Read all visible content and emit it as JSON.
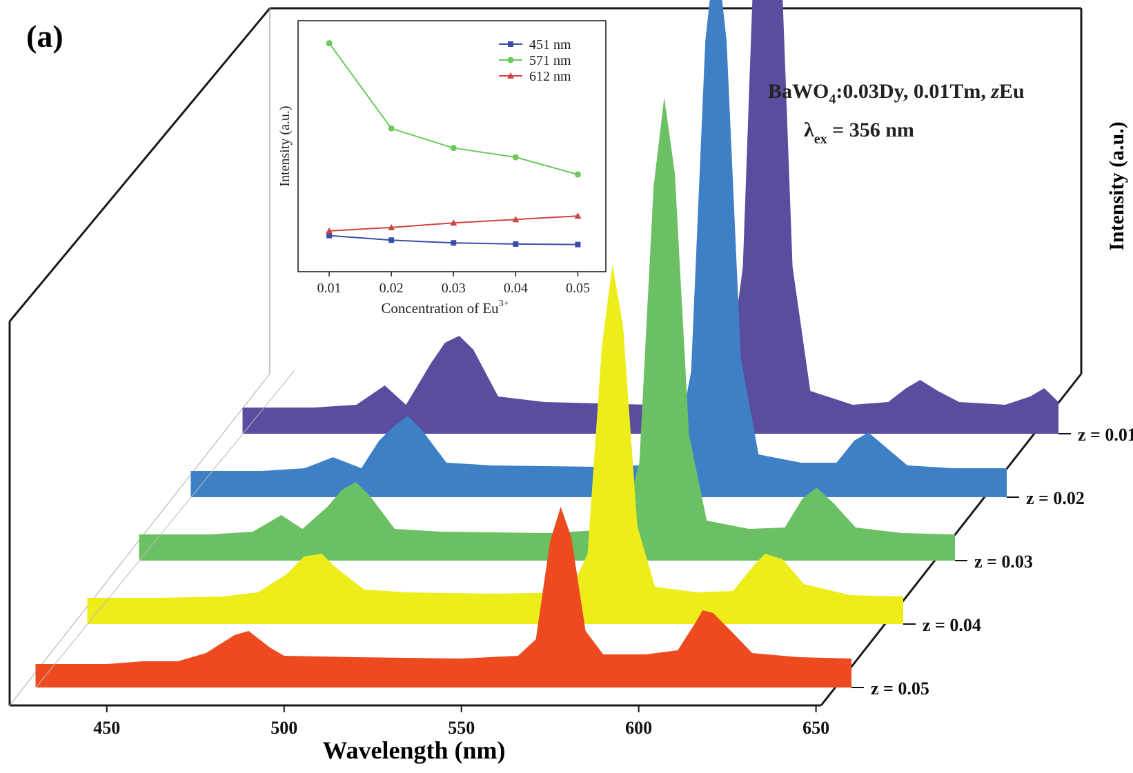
{
  "panel_label": "(a)",
  "annotation": {
    "compound_prefix": "BaWO",
    "compound_subscript": "4",
    "compound_suffix": ":0.03Dy, 0.01Tm, ",
    "compound_italic": "z",
    "compound_end": "Eu",
    "excitation_symbol": "λ",
    "excitation_subscript": "ex",
    "excitation_value": " = 356 nm"
  },
  "chart_data": [
    {
      "type": "area",
      "title": "",
      "xlabel": "Wavelength (nm)",
      "ylabel": "Intensity (a.u.)",
      "xlim": [
        430,
        660
      ],
      "x_ticks": [
        450,
        500,
        550,
        600,
        650
      ],
      "x_tick_labels": [
        "450",
        "500",
        "550",
        "600",
        "650"
      ],
      "series_axis": "z",
      "series": [
        {
          "name": "z = 0.05",
          "color": "#ee4a1f",
          "x": [
            430,
            450,
            460,
            470,
            478,
            486,
            490,
            496,
            500,
            520,
            550,
            566,
            571,
            575,
            578,
            581,
            585,
            590,
            602,
            611,
            616,
            618,
            621,
            626,
            632,
            645,
            660
          ],
          "y": [
            6,
            6,
            8,
            8,
            14,
            27,
            30,
            18,
            12,
            11,
            10,
            12,
            24,
            95,
            120,
            98,
            30,
            13,
            13,
            16,
            36,
            45,
            43,
            30,
            14,
            11,
            10
          ]
        },
        {
          "name": "z = 0.04",
          "color": "#eded1c",
          "x": [
            430,
            450,
            468,
            478,
            486,
            491,
            496,
            500,
            508,
            520,
            545,
            566,
            571,
            575,
            578,
            581,
            585,
            590,
            602,
            612,
            618,
            621,
            626,
            632,
            645,
            660
          ],
          "y": [
            8,
            8,
            9,
            12,
            25,
            38,
            40,
            30,
            14,
            12,
            11,
            12,
            40,
            190,
            250,
            205,
            60,
            16,
            12,
            13,
            32,
            40,
            36,
            18,
            10,
            9
          ]
        },
        {
          "name": "z = 0.03",
          "color": "#6cc064",
          "x": [
            430,
            450,
            462,
            470,
            476,
            483,
            487,
            491,
            495,
            502,
            515,
            545,
            566,
            571,
            575,
            578,
            581,
            585,
            590,
            602,
            612,
            617,
            621,
            626,
            632,
            645,
            660
          ],
          "y": [
            8,
            8,
            10,
            22,
            12,
            28,
            40,
            46,
            36,
            12,
            10,
            9,
            12,
            60,
            260,
            325,
            270,
            80,
            18,
            12,
            13,
            34,
            42,
            30,
            13,
            9,
            8
          ]
        },
        {
          "name": "z = 0.02",
          "color": "#3d80c6",
          "x": [
            430,
            450,
            462,
            470,
            478,
            483,
            487,
            491,
            495,
            502,
            515,
            545,
            566,
            571,
            575,
            578,
            581,
            585,
            590,
            602,
            612,
            617,
            621,
            626,
            632,
            645,
            660
          ],
          "y": [
            8,
            8,
            10,
            18,
            10,
            30,
            40,
            48,
            38,
            14,
            12,
            11,
            13,
            80,
            320,
            390,
            320,
            90,
            20,
            14,
            14,
            30,
            36,
            25,
            12,
            10,
            10
          ]
        },
        {
          "name": "z = 0.01",
          "color": "#5a4c9f",
          "x": [
            430,
            450,
            462,
            470,
            476,
            483,
            487,
            491,
            495,
            502,
            515,
            545,
            566,
            571,
            575,
            578,
            581,
            585,
            590,
            602,
            612,
            617,
            621,
            626,
            632,
            645,
            652,
            656,
            660
          ],
          "y": [
            8,
            8,
            10,
            24,
            10,
            40,
            55,
            60,
            50,
            16,
            12,
            10,
            12,
            110,
            400,
            460,
            390,
            110,
            20,
            10,
            12,
            22,
            28,
            20,
            12,
            10,
            16,
            22,
            12
          ]
        }
      ]
    },
    {
      "type": "line",
      "title": "",
      "xlabel": "Concentration of Eu",
      "xlabel_superscript": "3+",
      "ylabel": "Intensity (a.u.)",
      "categories": [
        "0.01",
        "0.02",
        "0.03",
        "0.04",
        "0.05"
      ],
      "x": [
        0.01,
        0.02,
        0.03,
        0.04,
        0.05
      ],
      "xlim": [
        0.005,
        0.0545
      ],
      "ylim": [
        0,
        100
      ],
      "legend_position": "top-right",
      "series": [
        {
          "name": "451 nm",
          "color": "#3a4ea8",
          "marker": "square",
          "values": [
            14.5,
            12.5,
            11.3,
            10.8,
            10.6
          ]
        },
        {
          "name": "571 nm",
          "color": "#6ac95a",
          "marker": "circle",
          "values": [
            98,
            61,
            52.5,
            48.5,
            41
          ]
        },
        {
          "name": "612 nm",
          "color": "#cf4242",
          "marker": "triangle",
          "values": [
            16.5,
            18,
            20,
            21.5,
            23
          ]
        }
      ]
    }
  ]
}
